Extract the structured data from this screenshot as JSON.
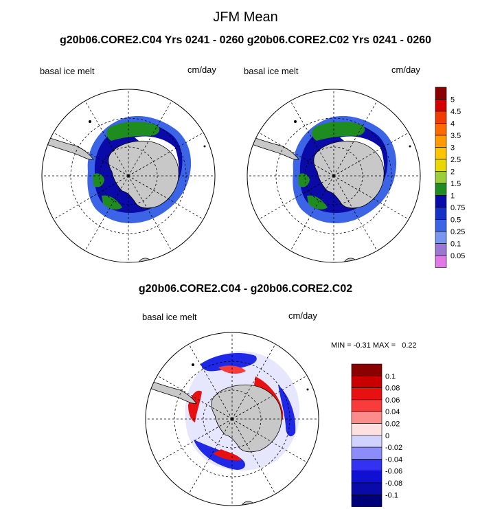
{
  "title": "JFM Mean",
  "subtitle": "g20b06.CORE2.C04  Yrs 0241 - 0260 g20b06.CORE2.C02  Yrs 0241 - 0260",
  "panels": [
    {
      "variable": "basal ice melt",
      "units": "cm/day"
    },
    {
      "variable": "basal ice melt",
      "units": "cm/day"
    }
  ],
  "difference": {
    "title": "g20b06.CORE2.C04 - g20b06.CORE2.C02",
    "variable": "basal ice melt",
    "units": "cm/day",
    "min_label": "MIN =",
    "min_value": "-0.31",
    "max_label": "MAX =",
    "max_value": "0.22"
  },
  "colorbar_top": {
    "labels": [
      "5",
      "4.5",
      "4",
      "3.5",
      "3",
      "2.5",
      "2",
      "1.5",
      "1",
      "0.75",
      "0.5",
      "0.25",
      "0.1",
      "0.05"
    ],
    "colors": [
      "#8b0000",
      "#d40000",
      "#f03c00",
      "#ff6a00",
      "#ff9a00",
      "#ffc400",
      "#e8d800",
      "#9ccd3a",
      "#1f8c1f",
      "#0a0aa8",
      "#1432c8",
      "#3c64e6",
      "#7896f0",
      "#9a78d2",
      "#e078e6"
    ]
  },
  "colorbar_diff": {
    "labels": [
      "0.1",
      "0.08",
      "0.06",
      "0.04",
      "0.02",
      "0",
      "-0.02",
      "-0.04",
      "-0.06",
      "-0.08",
      "-0.1"
    ],
    "colors": [
      "#8b0000",
      "#c80000",
      "#e81010",
      "#f83c3c",
      "#fa8c8c",
      "#ffe0e0",
      "#d2d2ff",
      "#8c8cfa",
      "#3232f0",
      "#1010d2",
      "#0a0aa8",
      "#000078"
    ]
  },
  "colors": {
    "land": "#c8c8c8",
    "green": "#1f8c1f",
    "blue": "#3c64e6",
    "dark_blue": "#0a0aa8",
    "diff_red": "#e81010",
    "diff_blue": "#1e28e6"
  }
}
